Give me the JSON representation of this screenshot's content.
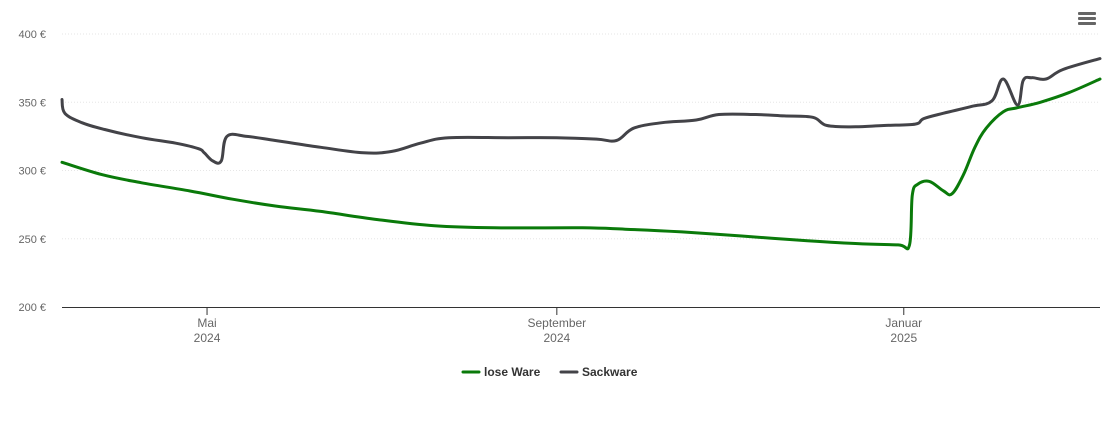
{
  "ui": {
    "menu_icon": "hamburger-menu-icon"
  },
  "chart_data": {
    "type": "line",
    "title": "",
    "xlabel": "",
    "ylabel": "",
    "x_type": "date",
    "xlim": [
      "2024-03-11",
      "2025-03-11"
    ],
    "ylim": [
      200,
      400
    ],
    "grid": true,
    "legend_position": "bottom-center",
    "y_ticks": [
      {
        "value": 200,
        "label": "200 €"
      },
      {
        "value": 250,
        "label": "250 €"
      },
      {
        "value": 300,
        "label": "300 €"
      },
      {
        "value": 350,
        "label": "350 €"
      },
      {
        "value": 400,
        "label": "400 €"
      }
    ],
    "x_ticks": [
      {
        "date": "2024-05-01",
        "label1": "Mai",
        "label2": "2024"
      },
      {
        "date": "2024-09-01",
        "label1": "September",
        "label2": "2024"
      },
      {
        "date": "2025-01-01",
        "label1": "Januar",
        "label2": "2025"
      }
    ],
    "series": [
      {
        "name": "lose Ware",
        "color": "#0a7a0a",
        "points": [
          [
            "2024-03-11",
            306
          ],
          [
            "2024-03-25",
            297
          ],
          [
            "2024-04-08",
            291
          ],
          [
            "2024-04-25",
            285
          ],
          [
            "2024-05-10",
            279
          ],
          [
            "2024-05-25",
            274
          ],
          [
            "2024-06-10",
            270
          ],
          [
            "2024-06-30",
            264
          ],
          [
            "2024-07-20",
            259.5
          ],
          [
            "2024-08-10",
            258
          ],
          [
            "2024-09-10",
            258
          ],
          [
            "2024-09-25",
            257
          ],
          [
            "2024-10-15",
            255
          ],
          [
            "2024-11-05",
            252
          ],
          [
            "2024-11-25",
            249
          ],
          [
            "2024-12-15",
            246.5
          ],
          [
            "2024-12-30",
            245.5
          ],
          [
            "2025-01-03",
            245.5
          ],
          [
            "2025-01-04",
            282
          ],
          [
            "2025-01-06",
            290
          ],
          [
            "2025-01-10",
            292
          ],
          [
            "2025-01-15",
            285
          ],
          [
            "2025-01-18",
            283
          ],
          [
            "2025-01-22",
            297
          ],
          [
            "2025-01-26",
            317
          ],
          [
            "2025-01-30",
            331
          ],
          [
            "2025-02-05",
            343
          ],
          [
            "2025-02-10",
            346
          ],
          [
            "2025-02-18",
            350
          ],
          [
            "2025-02-28",
            357
          ],
          [
            "2025-03-11",
            367
          ]
        ]
      },
      {
        "name": "Sackware",
        "color": "#434348",
        "points": [
          [
            "2024-03-11",
            352
          ],
          [
            "2024-03-12",
            342
          ],
          [
            "2024-03-18",
            335
          ],
          [
            "2024-03-26",
            330
          ],
          [
            "2024-04-08",
            324
          ],
          [
            "2024-04-20",
            320
          ],
          [
            "2024-04-28",
            316
          ],
          [
            "2024-04-30",
            313
          ],
          [
            "2024-05-03",
            307
          ],
          [
            "2024-05-06",
            307
          ],
          [
            "2024-05-08",
            325
          ],
          [
            "2024-05-15",
            325
          ],
          [
            "2024-05-25",
            322
          ],
          [
            "2024-06-10",
            317
          ],
          [
            "2024-06-25",
            313
          ],
          [
            "2024-07-05",
            314
          ],
          [
            "2024-07-15",
            320
          ],
          [
            "2024-07-25",
            324
          ],
          [
            "2024-08-15",
            324
          ],
          [
            "2024-09-01",
            324
          ],
          [
            "2024-09-15",
            323
          ],
          [
            "2024-09-22",
            322
          ],
          [
            "2024-09-28",
            331
          ],
          [
            "2024-10-08",
            335
          ],
          [
            "2024-10-20",
            337
          ],
          [
            "2024-10-28",
            341
          ],
          [
            "2024-11-10",
            341
          ],
          [
            "2024-11-20",
            340
          ],
          [
            "2024-11-30",
            339
          ],
          [
            "2024-12-05",
            333
          ],
          [
            "2024-12-15",
            332
          ],
          [
            "2024-12-25",
            333
          ],
          [
            "2025-01-05",
            334
          ],
          [
            "2025-01-08",
            338
          ],
          [
            "2025-01-15",
            342
          ],
          [
            "2025-01-25",
            347
          ],
          [
            "2025-02-01",
            351
          ],
          [
            "2025-02-05",
            367
          ],
          [
            "2025-02-10",
            348
          ],
          [
            "2025-02-12",
            366
          ],
          [
            "2025-02-15",
            368
          ],
          [
            "2025-02-20",
            367
          ],
          [
            "2025-02-26",
            374
          ],
          [
            "2025-03-11",
            382
          ]
        ]
      }
    ]
  }
}
